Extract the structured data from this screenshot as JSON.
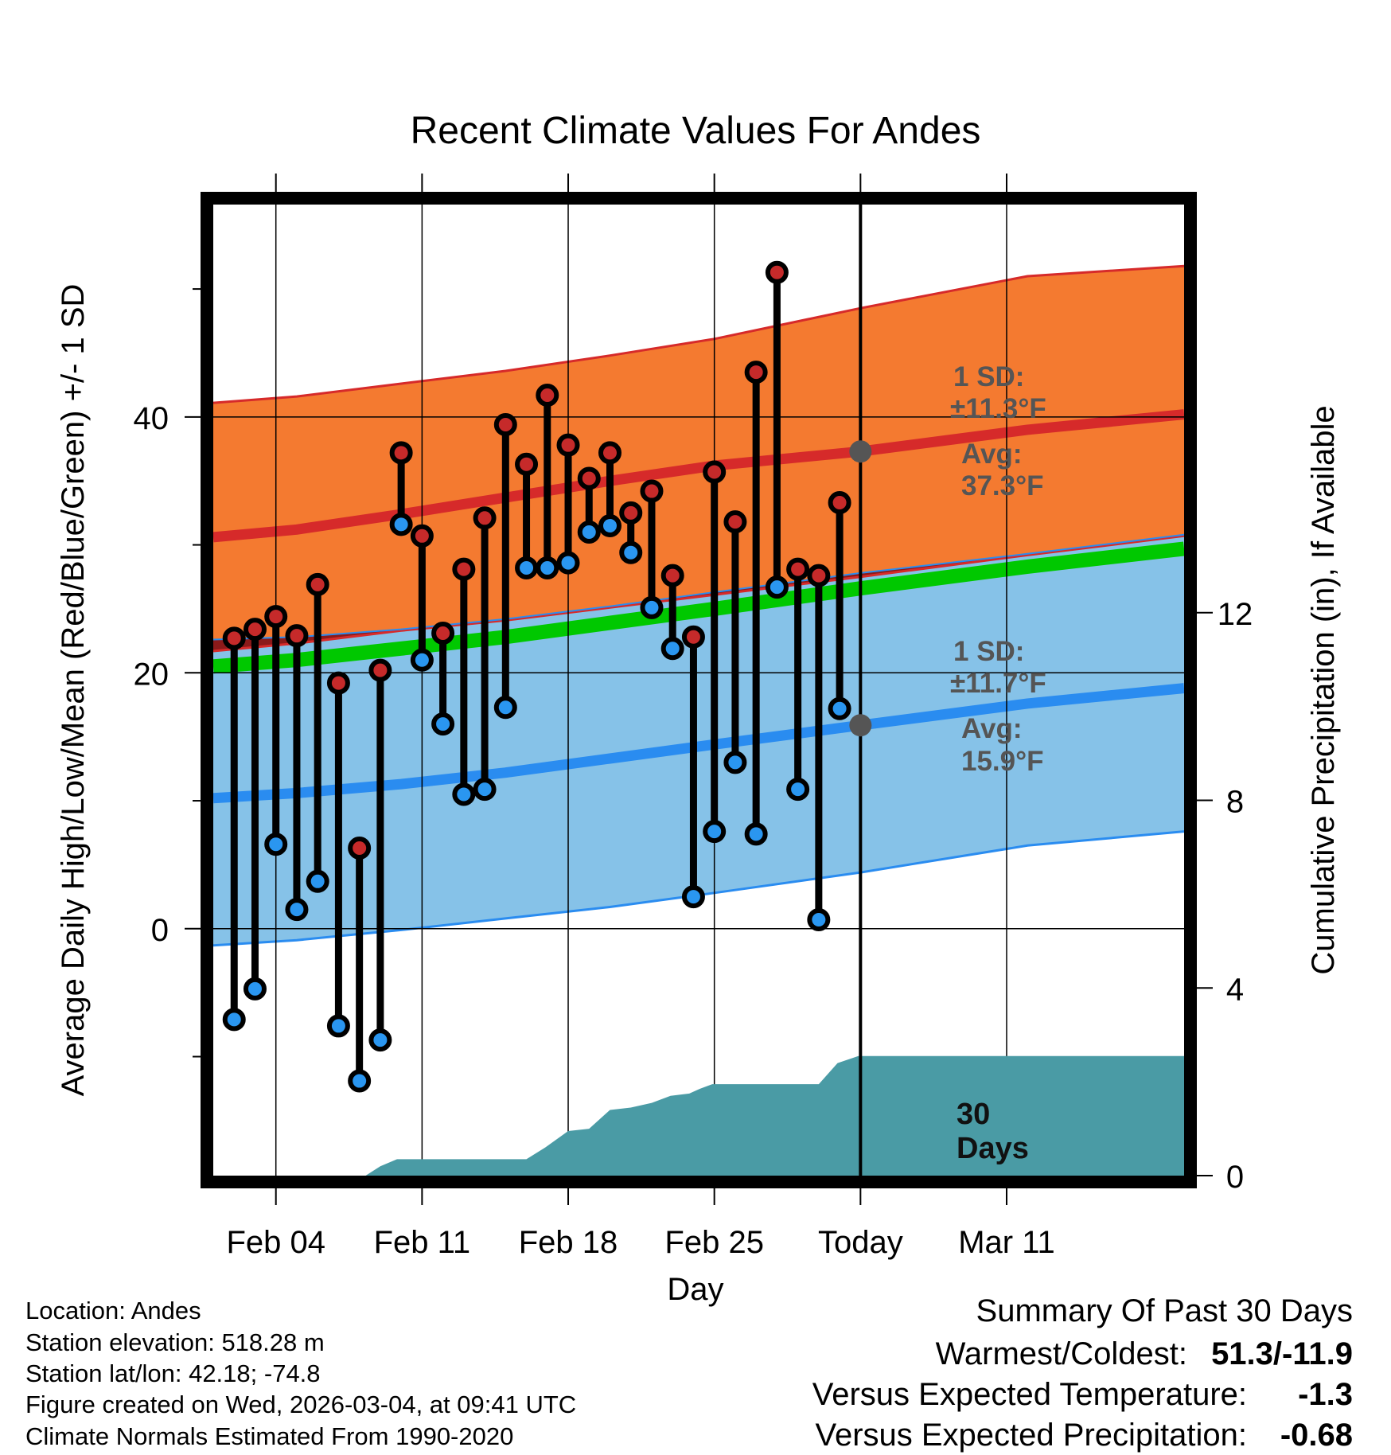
{
  "chart_data": {
    "type": "line",
    "title": "Recent Climate Values For Andes",
    "xlabel": "Day",
    "ylabel": "Average Daily High/Low/Mean (Red/Blue/Green) +/- 1 SD",
    "y2label": "Cumulative Precipitation (in), If Available",
    "xlim": [
      1,
      47.5
    ],
    "ylim": [
      -19.3,
      56.6
    ],
    "y2lim": [
      0,
      20.7
    ],
    "x_ticks": [
      {
        "x": 4,
        "label": "Feb 04"
      },
      {
        "x": 11,
        "label": "Feb 11"
      },
      {
        "x": 18,
        "label": "Feb 18"
      },
      {
        "x": 25,
        "label": "Feb 25"
      },
      {
        "x": 32,
        "label": "Today"
      },
      {
        "x": 39,
        "label": "Mar 11"
      }
    ],
    "y_ticks": [
      0,
      20,
      40
    ],
    "y_minor_ticks": [
      -10,
      10,
      30,
      50
    ],
    "y2_ticks": [
      0,
      4,
      8,
      12
    ],
    "today_x": 32,
    "normal_high": {
      "x": [
        1,
        5,
        10,
        15,
        20,
        25,
        32,
        40,
        47.5
      ],
      "mean": [
        30.6,
        31.2,
        32.4,
        33.7,
        35.0,
        36.2,
        37.3,
        39.0,
        40.2
      ],
      "upper": [
        41.1,
        41.6,
        42.6,
        43.6,
        44.8,
        46.1,
        48.5,
        51.0,
        51.8
      ],
      "lower": [
        21.7,
        22.3,
        23.3,
        24.1,
        25.1,
        26.1,
        27.5,
        29.2,
        30.7
      ]
    },
    "normal_low": {
      "x": [
        1,
        5,
        10,
        15,
        20,
        25,
        32,
        40,
        47.5
      ],
      "mean": [
        10.2,
        10.6,
        11.3,
        12.2,
        13.3,
        14.4,
        15.9,
        17.6,
        18.8
      ],
      "upper": [
        22.6,
        22.8,
        23.4,
        24.2,
        25.2,
        26.3,
        27.8,
        29.3,
        30.8
      ],
      "lower": [
        -1.3,
        -0.9,
        -0.1,
        0.8,
        1.7,
        2.8,
        4.4,
        6.5,
        7.6
      ]
    },
    "normal_mean": {
      "x": [
        1,
        5,
        10,
        15,
        20,
        25,
        32,
        40,
        47.5
      ],
      "values": [
        20.5,
        21.0,
        21.9,
        22.8,
        23.9,
        25.0,
        26.6,
        28.3,
        29.7
      ]
    },
    "observed_highs": [
      22.7,
      23.4,
      24.4,
      22.9,
      26.9,
      19.2,
      6.3,
      20.2,
      37.2,
      30.7,
      23.1,
      28.1,
      32.1,
      39.4,
      36.3,
      41.7,
      37.8,
      35.2,
      37.2,
      32.5,
      34.2,
      27.6,
      22.8,
      35.7,
      31.8,
      43.5,
      51.3,
      28.1,
      27.6,
      33.3
    ],
    "observed_lows": [
      -7.1,
      -4.7,
      6.6,
      1.5,
      3.7,
      -7.6,
      -11.9,
      -8.7,
      31.6,
      21.0,
      16.0,
      10.5,
      10.9,
      17.3,
      28.2,
      28.2,
      28.6,
      31.0,
      31.5,
      29.4,
      25.1,
      21.9,
      2.5,
      7.6,
      13.0,
      7.4,
      26.7,
      10.9,
      0.7,
      17.2
    ],
    "observed_x_start": 2,
    "precip": {
      "x": [
        1,
        8.3,
        9.0,
        9.8,
        10.3,
        16.0,
        16.9,
        18.0,
        19.0,
        20.0,
        21.0,
        22.0,
        22.9,
        23.8,
        24.3,
        24.9,
        30.0,
        30.9,
        31.9,
        47.5
      ],
      "values": [
        0,
        0,
        0.2,
        0.35,
        0.35,
        0.35,
        0.6,
        0.95,
        1.0,
        1.4,
        1.45,
        1.55,
        1.7,
        1.75,
        1.85,
        1.95,
        1.95,
        2.4,
        2.55,
        2.55
      ]
    }
  },
  "annotations": {
    "high_sd_line1": "1 SD:",
    "high_sd_line2": "±11.3°F",
    "high_avg_line1": "Avg:",
    "high_avg_line2": "37.3°F",
    "low_sd_line1": "1 SD:",
    "low_sd_line2": "±11.7°F",
    "low_avg_line1": "Avg:",
    "low_avg_line2": "15.9°F",
    "days_line1": "30",
    "days_line2": "Days"
  },
  "footer": {
    "location": "Location: Andes",
    "elevation": "Station elevation: 518.28 m",
    "latlon": "Station lat/lon: 42.18; -74.8",
    "created": "Figure created on Wed, 2026-03-04, at 09:41 UTC",
    "normals": "Climate Normals Estimated From 1990-2020"
  },
  "summary": {
    "title": "Summary Of Past 30 Days",
    "warmest_label": "Warmest/Coldest:",
    "warmest_value": "51.3/-11.9",
    "temp_label": "Versus Expected Temperature:",
    "temp_value": "-1.3",
    "precip_label": "Versus Expected Precipitation:",
    "precip_value": "-0.68"
  },
  "colors": {
    "high_band": "#f47a30",
    "high_line": "#d62a2a",
    "low_band": "#86c2e8",
    "low_line": "#2a8cf0",
    "mean_line": "#00c800",
    "overlap": "#8b1a1a",
    "precip": "#4a9ba5",
    "high_dot": "#c62a2a",
    "low_dot": "#2a96f0",
    "temp_value": "#2a96f0",
    "precip_value": "#a0522d"
  }
}
